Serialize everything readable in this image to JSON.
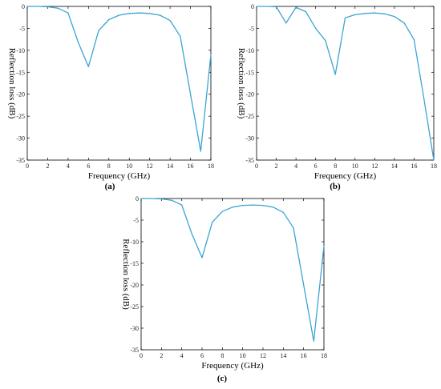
{
  "chart_data": [
    {
      "type": "line",
      "panel_label": "(a)",
      "xlabel": "Frequency (GHz)",
      "ylabel": "Reflection loss (dB)",
      "xlim": [
        0,
        18
      ],
      "ylim": [
        -35,
        0
      ],
      "xticks": [
        0,
        2,
        4,
        6,
        8,
        10,
        12,
        14,
        16,
        18
      ],
      "yticks": [
        0,
        -5,
        -10,
        -15,
        -20,
        -25,
        -30,
        -35
      ],
      "color": "#3aa5d4",
      "series": [
        {
          "x": [
            0,
            1,
            2,
            3,
            4,
            5,
            6,
            7,
            8,
            9,
            10,
            11,
            12,
            13,
            14,
            15,
            16,
            17,
            18
          ],
          "y": [
            0,
            0,
            -0.1,
            -0.4,
            -1.5,
            -8.2,
            -13.7,
            -5.5,
            -3.0,
            -2.0,
            -1.6,
            -1.5,
            -1.6,
            -2.0,
            -3.2,
            -6.8,
            -20.0,
            -33.0,
            -11.0
          ]
        }
      ]
    },
    {
      "type": "line",
      "panel_label": "(b)",
      "xlabel": "Frequency (GHz)",
      "ylabel": "Reflection loss (dB)",
      "xlim": [
        0,
        18
      ],
      "ylim": [
        -35,
        0
      ],
      "xticks": [
        0,
        2,
        4,
        6,
        8,
        10,
        12,
        14,
        16,
        18
      ],
      "yticks": [
        0,
        -5,
        -10,
        -15,
        -20,
        -25,
        -30,
        -35
      ],
      "color": "#3aa5d4",
      "series": [
        {
          "x": [
            0,
            1,
            2,
            3,
            4,
            5,
            6,
            7,
            8,
            9,
            10,
            11,
            12,
            13,
            14,
            15,
            16,
            17,
            18
          ],
          "y": [
            0,
            0,
            -0.1,
            -3.8,
            -0.2,
            -1.2,
            -5.0,
            -7.8,
            -15.5,
            -2.6,
            -1.9,
            -1.6,
            -1.5,
            -1.7,
            -2.3,
            -3.8,
            -7.6,
            -21.0,
            -35.0
          ]
        }
      ]
    },
    {
      "type": "line",
      "panel_label": "(c)",
      "xlabel": "Frequency (GHz)",
      "ylabel": "Reflection loss (dB)",
      "xlim": [
        0,
        18
      ],
      "ylim": [
        -35,
        0
      ],
      "xticks": [
        0,
        2,
        4,
        6,
        8,
        10,
        12,
        14,
        16,
        18
      ],
      "yticks": [
        0,
        -5,
        -10,
        -15,
        -20,
        -25,
        -30,
        -35
      ],
      "color": "#3aa5d4",
      "series": [
        {
          "x": [
            0,
            1,
            2,
            3,
            4,
            5,
            6,
            7,
            8,
            9,
            10,
            11,
            12,
            13,
            14,
            15,
            16,
            17,
            18
          ],
          "y": [
            0,
            0,
            -0.1,
            -0.4,
            -1.5,
            -8.2,
            -13.7,
            -5.5,
            -3.0,
            -2.0,
            -1.6,
            -1.5,
            -1.6,
            -2.0,
            -3.2,
            -6.8,
            -20.0,
            -33.0,
            -11.0
          ]
        }
      ]
    }
  ]
}
